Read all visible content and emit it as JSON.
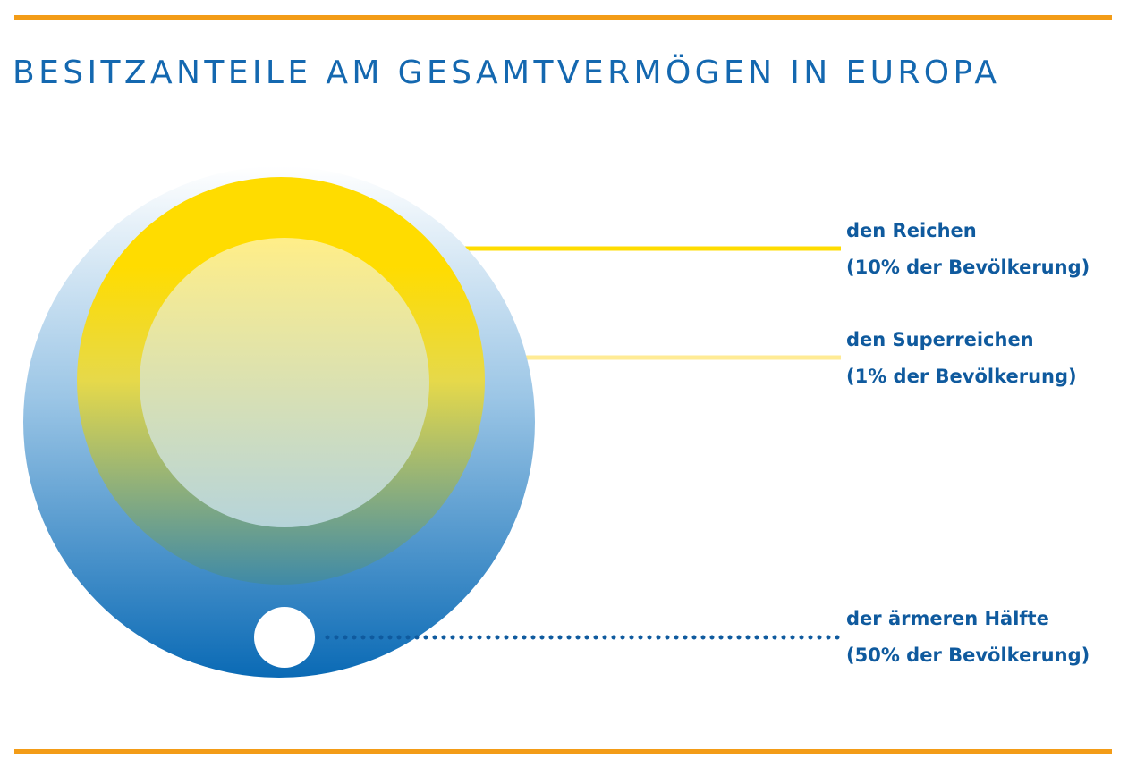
{
  "title": "BESITZANTEILE AM GESAMTVERMÖGEN IN EUROPA",
  "colors": {
    "accent_rule": "#F39C17",
    "title_blue": "#1468B0",
    "label_blue": "#0F5A9E",
    "outer_top": "#ffffff",
    "outer_bottom": "#0A6AB5",
    "ring_top": "#FFDC00",
    "ring_bottom": "#3F8AA7",
    "inner_top": "#FFEE88",
    "inner_bottom": "#B6D4DA",
    "connector_reichen": "#FFDC00",
    "connector_superreichen": "#FFEB95",
    "connector_haelfte": "#0F5A9E"
  },
  "groups": [
    {
      "id": "reichen",
      "label": "den Reichen",
      "sublabel": "(10% der Bevölkerung)"
    },
    {
      "id": "superreichen",
      "label": "den Superreichen",
      "sublabel": "(1% der Bevölkerung)"
    },
    {
      "id": "haelfte",
      "label": "der ärmeren Hälfte",
      "sublabel": "(50% der Bevölkerung)"
    }
  ]
}
